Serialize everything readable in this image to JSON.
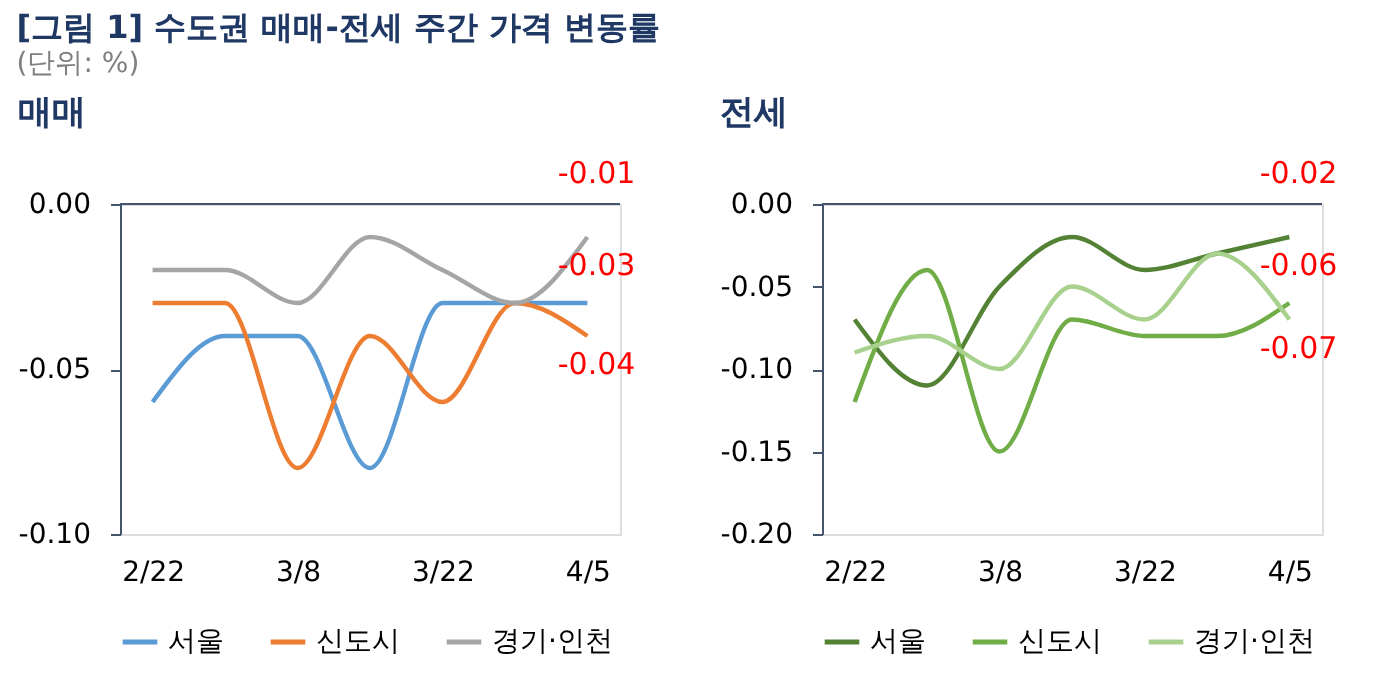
{
  "chart_data": [
    {
      "type": "line",
      "title": "매매",
      "categories": [
        "2/22",
        null,
        "3/8",
        null,
        "3/22",
        null,
        "4/5"
      ],
      "ylim": [
        -0.1,
        0
      ],
      "yticks": [
        {
          "value": -0.1,
          "label": "-0.10"
        },
        {
          "value": -0.05,
          "label": "-0.05"
        },
        {
          "value": 0,
          "label": "0.00"
        }
      ],
      "grid": false,
      "legend": "bottom",
      "marker": "none",
      "line_style": "solid",
      "annotations": [
        "[그림 1] 수도권 매매-전세 주간 가격 변동률"
      ],
      "series": [
        {
          "name": "서울",
          "color": "#5b9bd5",
          "values": [
            -0.06,
            -0.04,
            -0.04,
            -0.08,
            -0.03,
            -0.03,
            -0.03
          ],
          "value_labels": [
            null,
            null,
            null,
            null,
            null,
            null,
            "-0.03"
          ]
        },
        {
          "name": "신도시",
          "color": "#ed7d31",
          "values": [
            -0.03,
            -0.03,
            -0.08,
            -0.04,
            -0.06,
            -0.03,
            -0.04
          ],
          "value_labels": [
            null,
            null,
            null,
            null,
            null,
            null,
            "-0.04"
          ]
        },
        {
          "name": "경기·인천",
          "color": "#a5a5a5",
          "values": [
            -0.02,
            -0.02,
            -0.03,
            -0.01,
            -0.02,
            -0.03,
            -0.01
          ],
          "value_labels": [
            null,
            null,
            null,
            null,
            null,
            null,
            "-0.01"
          ]
        }
      ]
    },
    {
      "type": "line",
      "title": "전세",
      "categories": [
        "2/22",
        null,
        "3/8",
        null,
        "3/22",
        null,
        "4/5"
      ],
      "ylim": [
        -0.2,
        0
      ],
      "yticks": [
        {
          "value": -0.2,
          "label": "-0.20"
        },
        {
          "value": -0.15,
          "label": "-0.15"
        },
        {
          "value": -0.1,
          "label": "-0.10"
        },
        {
          "value": -0.05,
          "label": "-0.05"
        },
        {
          "value": 0,
          "label": "0.00"
        }
      ],
      "grid": false,
      "legend": "bottom",
      "marker": "none",
      "line_style": "solid",
      "annotations": [
        "(단위: %)"
      ],
      "series": [
        {
          "name": "서울",
          "color": "#548235",
          "values": [
            -0.07,
            -0.11,
            -0.05,
            -0.02,
            -0.04,
            -0.03,
            -0.02
          ],
          "value_labels": [
            null,
            null,
            null,
            null,
            null,
            null,
            "-0.02"
          ]
        },
        {
          "name": "신도시",
          "color": "#70ad47",
          "values": [
            -0.12,
            -0.04,
            -0.15,
            -0.07,
            -0.08,
            -0.08,
            -0.06
          ],
          "value_labels": [
            null,
            null,
            null,
            null,
            null,
            null,
            "-0.06"
          ]
        },
        {
          "name": "경기·인천",
          "color": "#a9d18e",
          "values": [
            -0.09,
            -0.08,
            -0.1,
            -0.05,
            -0.07,
            -0.03,
            -0.07
          ],
          "value_labels": [
            null,
            null,
            null,
            null,
            null,
            null,
            "-0.07"
          ]
        }
      ]
    }
  ]
}
